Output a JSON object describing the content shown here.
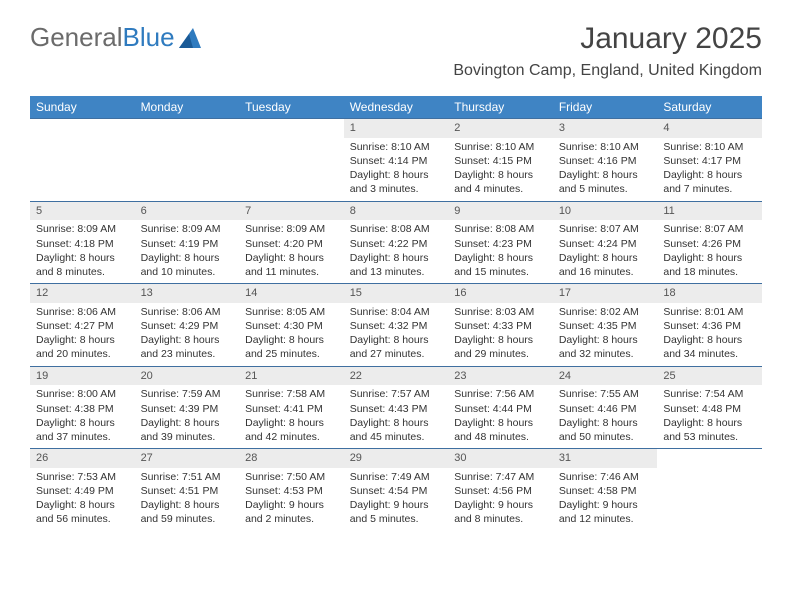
{
  "brand": {
    "part1": "General",
    "part2": "Blue"
  },
  "title": "January 2025",
  "location": "Bovington Camp, England, United Kingdom",
  "colors": {
    "header_bg": "#3f84c4",
    "header_fg": "#ffffff",
    "row_border": "#3f6fa0",
    "daynum_bg": "#ececec",
    "logo_blue": "#2f7bbf",
    "logo_gray": "#6b6b6b"
  },
  "dayNames": [
    "Sunday",
    "Monday",
    "Tuesday",
    "Wednesday",
    "Thursday",
    "Friday",
    "Saturday"
  ],
  "weeks": [
    [
      {
        "empty": true
      },
      {
        "empty": true
      },
      {
        "empty": true
      },
      {
        "n": "1",
        "sr": "8:10 AM",
        "ss": "4:14 PM",
        "dl": "8 hours and 3 minutes."
      },
      {
        "n": "2",
        "sr": "8:10 AM",
        "ss": "4:15 PM",
        "dl": "8 hours and 4 minutes."
      },
      {
        "n": "3",
        "sr": "8:10 AM",
        "ss": "4:16 PM",
        "dl": "8 hours and 5 minutes."
      },
      {
        "n": "4",
        "sr": "8:10 AM",
        "ss": "4:17 PM",
        "dl": "8 hours and 7 minutes."
      }
    ],
    [
      {
        "n": "5",
        "sr": "8:09 AM",
        "ss": "4:18 PM",
        "dl": "8 hours and 8 minutes."
      },
      {
        "n": "6",
        "sr": "8:09 AM",
        "ss": "4:19 PM",
        "dl": "8 hours and 10 minutes."
      },
      {
        "n": "7",
        "sr": "8:09 AM",
        "ss": "4:20 PM",
        "dl": "8 hours and 11 minutes."
      },
      {
        "n": "8",
        "sr": "8:08 AM",
        "ss": "4:22 PM",
        "dl": "8 hours and 13 minutes."
      },
      {
        "n": "9",
        "sr": "8:08 AM",
        "ss": "4:23 PM",
        "dl": "8 hours and 15 minutes."
      },
      {
        "n": "10",
        "sr": "8:07 AM",
        "ss": "4:24 PM",
        "dl": "8 hours and 16 minutes."
      },
      {
        "n": "11",
        "sr": "8:07 AM",
        "ss": "4:26 PM",
        "dl": "8 hours and 18 minutes."
      }
    ],
    [
      {
        "n": "12",
        "sr": "8:06 AM",
        "ss": "4:27 PM",
        "dl": "8 hours and 20 minutes."
      },
      {
        "n": "13",
        "sr": "8:06 AM",
        "ss": "4:29 PM",
        "dl": "8 hours and 23 minutes."
      },
      {
        "n": "14",
        "sr": "8:05 AM",
        "ss": "4:30 PM",
        "dl": "8 hours and 25 minutes."
      },
      {
        "n": "15",
        "sr": "8:04 AM",
        "ss": "4:32 PM",
        "dl": "8 hours and 27 minutes."
      },
      {
        "n": "16",
        "sr": "8:03 AM",
        "ss": "4:33 PM",
        "dl": "8 hours and 29 minutes."
      },
      {
        "n": "17",
        "sr": "8:02 AM",
        "ss": "4:35 PM",
        "dl": "8 hours and 32 minutes."
      },
      {
        "n": "18",
        "sr": "8:01 AM",
        "ss": "4:36 PM",
        "dl": "8 hours and 34 minutes."
      }
    ],
    [
      {
        "n": "19",
        "sr": "8:00 AM",
        "ss": "4:38 PM",
        "dl": "8 hours and 37 minutes."
      },
      {
        "n": "20",
        "sr": "7:59 AM",
        "ss": "4:39 PM",
        "dl": "8 hours and 39 minutes."
      },
      {
        "n": "21",
        "sr": "7:58 AM",
        "ss": "4:41 PM",
        "dl": "8 hours and 42 minutes."
      },
      {
        "n": "22",
        "sr": "7:57 AM",
        "ss": "4:43 PM",
        "dl": "8 hours and 45 minutes."
      },
      {
        "n": "23",
        "sr": "7:56 AM",
        "ss": "4:44 PM",
        "dl": "8 hours and 48 minutes."
      },
      {
        "n": "24",
        "sr": "7:55 AM",
        "ss": "4:46 PM",
        "dl": "8 hours and 50 minutes."
      },
      {
        "n": "25",
        "sr": "7:54 AM",
        "ss": "4:48 PM",
        "dl": "8 hours and 53 minutes."
      }
    ],
    [
      {
        "n": "26",
        "sr": "7:53 AM",
        "ss": "4:49 PM",
        "dl": "8 hours and 56 minutes."
      },
      {
        "n": "27",
        "sr": "7:51 AM",
        "ss": "4:51 PM",
        "dl": "8 hours and 59 minutes."
      },
      {
        "n": "28",
        "sr": "7:50 AM",
        "ss": "4:53 PM",
        "dl": "9 hours and 2 minutes."
      },
      {
        "n": "29",
        "sr": "7:49 AM",
        "ss": "4:54 PM",
        "dl": "9 hours and 5 minutes."
      },
      {
        "n": "30",
        "sr": "7:47 AM",
        "ss": "4:56 PM",
        "dl": "9 hours and 8 minutes."
      },
      {
        "n": "31",
        "sr": "7:46 AM",
        "ss": "4:58 PM",
        "dl": "9 hours and 12 minutes."
      },
      {
        "empty": true
      }
    ]
  ],
  "labels": {
    "sunrise": "Sunrise:",
    "sunset": "Sunset:",
    "daylight": "Daylight:"
  }
}
